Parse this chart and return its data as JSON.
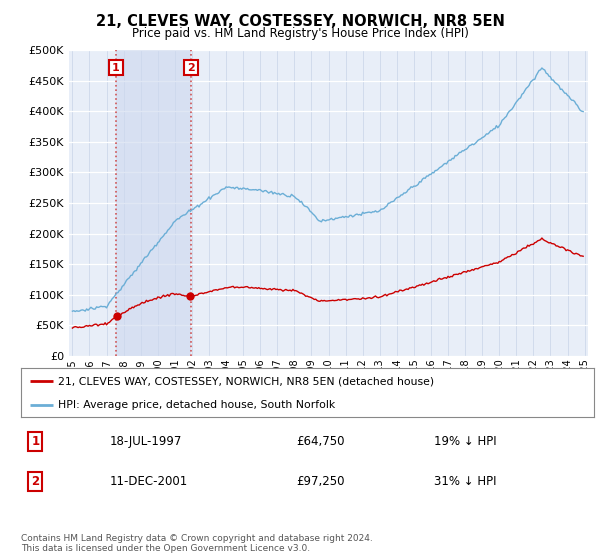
{
  "title": "21, CLEVES WAY, COSTESSEY, NORWICH, NR8 5EN",
  "subtitle": "Price paid vs. HM Land Registry's House Price Index (HPI)",
  "legend_label_red": "21, CLEVES WAY, COSTESSEY, NORWICH, NR8 5EN (detached house)",
  "legend_label_blue": "HPI: Average price, detached house, South Norfolk",
  "sale1_date": "18-JUL-1997",
  "sale1_price": 64750,
  "sale2_date": "11-DEC-2001",
  "sale2_price": 97250,
  "sale1_hpi_diff": "19% ↓ HPI",
  "sale2_hpi_diff": "31% ↓ HPI",
  "footer": "Contains HM Land Registry data © Crown copyright and database right 2024.\nThis data is licensed under the Open Government Licence v3.0.",
  "hpi_color": "#6baed6",
  "price_color": "#cc0000",
  "background_color": "#e8eef8",
  "ylim_min": 0,
  "ylim_max": 500000,
  "x_start_year": 1995,
  "x_end_year": 2025
}
